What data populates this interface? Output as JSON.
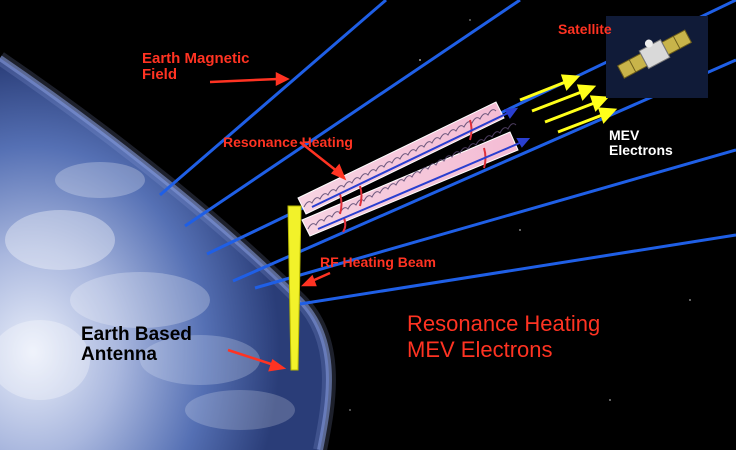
{
  "labels": {
    "earth_magnetic_field": [
      "Earth Magnetic",
      "Field"
    ],
    "satellite": "Satellite",
    "mev_electrons": [
      "MEV",
      "Electrons"
    ],
    "resonance_heating": "Resonance Heating",
    "rf_heating_beam": "RF Heating Beam",
    "earth_based_antenna": [
      "Earth Based",
      "Antenna"
    ]
  },
  "caption": [
    "Resonance Heating",
    "MEV Electrons"
  ],
  "colors": {
    "background": "#000000",
    "earth": "#4a66b0",
    "field_lines": "#1f5fe6",
    "label_red": "#ff3322",
    "arrow_yellow": "#ffff1a",
    "beam_yellow": "#f2f22a",
    "heating_tube": "#f4c2d8"
  }
}
